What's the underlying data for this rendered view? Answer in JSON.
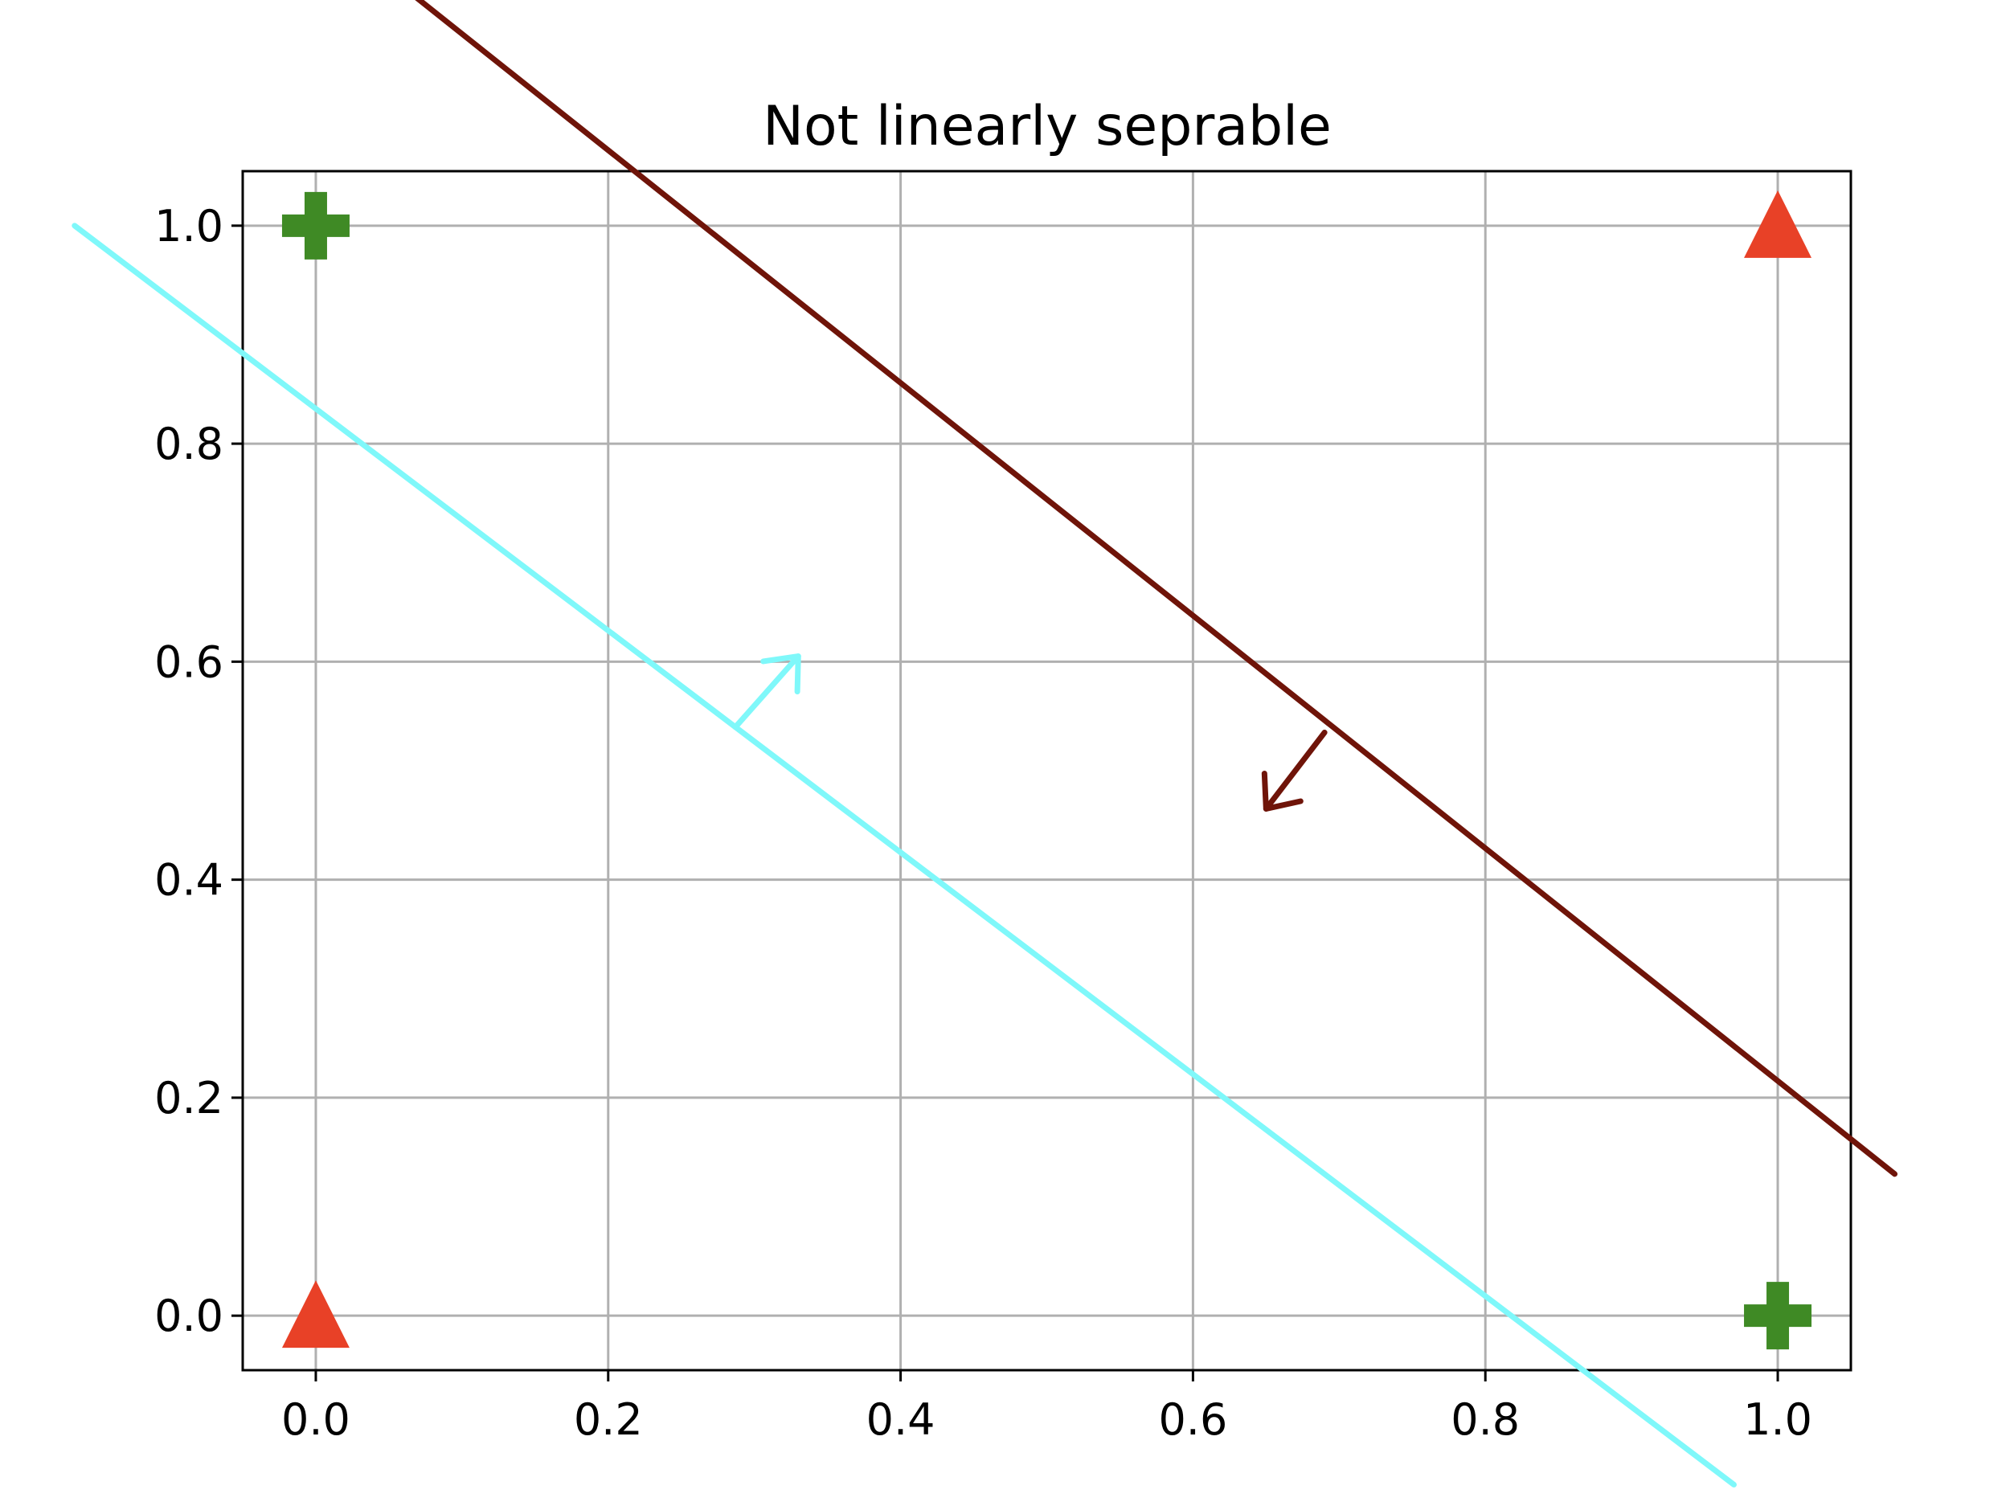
{
  "chart_data": {
    "type": "scatter",
    "title": "Not linearly seprable",
    "xlabel": "",
    "ylabel": "",
    "xlim": [
      -0.05,
      1.05
    ],
    "ylim": [
      -0.05,
      1.05
    ],
    "grid": true,
    "x_ticks": [
      "0.0",
      "0.2",
      "0.4",
      "0.6",
      "0.8",
      "1.0"
    ],
    "y_ticks": [
      "0.0",
      "0.2",
      "0.4",
      "0.6",
      "0.8",
      "1.0"
    ],
    "series": [
      {
        "marker": "plus",
        "color": "#3f8a25",
        "points": [
          {
            "x": 0,
            "y": 1
          },
          {
            "x": 1,
            "y": 0
          }
        ]
      },
      {
        "marker": "triangle",
        "color": "#e84127",
        "points": [
          {
            "x": 0,
            "y": 0
          },
          {
            "x": 1,
            "y": 1
          }
        ]
      }
    ],
    "annotations": [
      {
        "kind": "boundary-line",
        "color": "#6f1409",
        "from": {
          "x": 0.04,
          "y": 1.24
        },
        "to": {
          "x": 1.08,
          "y": 0.13
        },
        "arrow_base": {
          "x": 0.69,
          "y": 0.535
        },
        "arrow_tip": {
          "x": 0.65,
          "y": 0.465
        }
      },
      {
        "kind": "boundary-line",
        "color": "#7ff8fa",
        "from": {
          "x": -0.165,
          "y": 1.0
        },
        "to": {
          "x": 0.97,
          "y": -0.155
        },
        "arrow_base": {
          "x": 0.287,
          "y": 0.54
        },
        "arrow_tip": {
          "x": 0.33,
          "y": 0.605
        }
      }
    ]
  }
}
